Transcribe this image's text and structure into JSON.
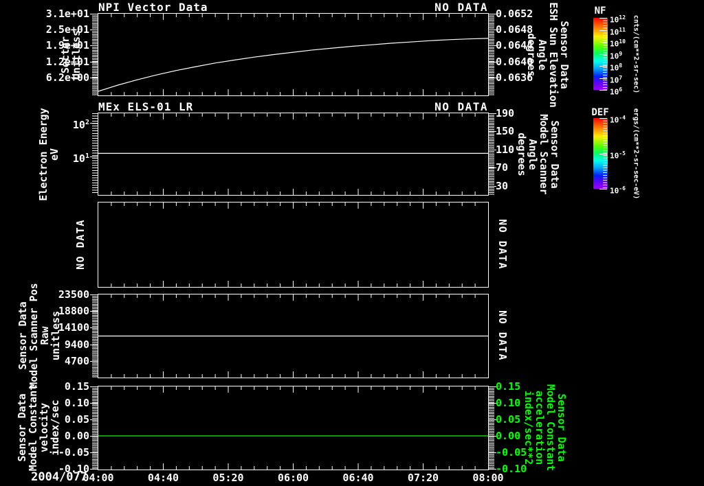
{
  "chart_data": {
    "x_axis": {
      "date_label": "2004/077",
      "tick_labels": [
        "04:00",
        "04:40",
        "05:20",
        "06:00",
        "06:40",
        "07:20",
        "08:00"
      ],
      "range_hours": [
        4,
        8
      ],
      "minor_per_major": 5
    },
    "panels": [
      {
        "id": "npi-vector-data",
        "type": "line",
        "title": "NPI Vector Data",
        "status": "NO DATA",
        "left_axis": {
          "title": "Sector\nUnitless",
          "scale": "linear",
          "range": [
            -0.8,
            31
          ],
          "comb": "dense",
          "ticks": [
            {
              "v": 6.2,
              "label": "6.2e+00"
            },
            {
              "v": 12.4,
              "label": "1.2e+01"
            },
            {
              "v": 18.6,
              "label": "1.9e+01"
            },
            {
              "v": 24.8,
              "label": "2.5e+01"
            },
            {
              "v": 31,
              "label": "3.1e+01"
            }
          ]
        },
        "right_axis": {
          "title": "Sensor Data\nESH Sun Elevation\nAngle\ndegrees",
          "scale": "linear",
          "range": [
            0.06315,
            0.0652
          ],
          "comb": "dense",
          "ticks": [
            {
              "v": 0.0636,
              "label": "0.0636"
            },
            {
              "v": 0.064,
              "label": "0.0640"
            },
            {
              "v": 0.0644,
              "label": "0.0644"
            },
            {
              "v": 0.0648,
              "label": "0.0648"
            },
            {
              "v": 0.0652,
              "label": "0.0652"
            }
          ]
        },
        "series": [
          {
            "name": "npi-sector-curve",
            "color": "#ffffff",
            "axis": "left",
            "points": [
              [
                4.0,
                0.8
              ],
              [
                4.2,
                3.2
              ],
              [
                4.4,
                5.3
              ],
              [
                4.6,
                7.2
              ],
              [
                4.8,
                8.9
              ],
              [
                5.0,
                10.4
              ],
              [
                5.2,
                11.8
              ],
              [
                5.4,
                13.0
              ],
              [
                5.6,
                14.1
              ],
              [
                5.8,
                15.1
              ],
              [
                6.0,
                16.0
              ],
              [
                6.2,
                16.9
              ],
              [
                6.4,
                17.6
              ],
              [
                6.6,
                18.3
              ],
              [
                6.8,
                18.9
              ],
              [
                7.0,
                19.5
              ],
              [
                7.2,
                20.0
              ],
              [
                7.4,
                20.5
              ],
              [
                7.6,
                20.9
              ],
              [
                7.8,
                21.2
              ],
              [
                8.0,
                21.4
              ]
            ]
          }
        ]
      },
      {
        "id": "mex-els-01-lr",
        "type": "line",
        "title": "MEx ELS-01 LR",
        "status": "NO DATA",
        "left_axis": {
          "title": "Electron Energy\neV",
          "scale": "log",
          "range": [
            0.76,
            188
          ],
          "comb": "log",
          "ticks": [
            {
              "v": 10,
              "label": "10^1"
            },
            {
              "v": 100,
              "label": "10^2"
            }
          ]
        },
        "right_axis": {
          "title": "Sensor Data\nModel Scanner\nAngle\ndegrees",
          "scale": "linear",
          "range": [
            10,
            190
          ],
          "comb": "dense",
          "ticks": [
            {
              "v": 30,
              "label": "30"
            },
            {
              "v": 70,
              "label": "70"
            },
            {
              "v": 110,
              "label": "110"
            },
            {
              "v": 150,
              "label": "150"
            },
            {
              "v": 190,
              "label": "190"
            }
          ]
        },
        "series": [
          {
            "name": "electron-energy-line",
            "color": "#ffffff",
            "axis": "left",
            "points": [
              [
                4,
                12.6
              ],
              [
                8,
                12.6
              ]
            ]
          }
        ]
      },
      {
        "id": "no-data-panel",
        "type": "empty",
        "title": "",
        "status": "",
        "left_axis": {
          "title": "NO DATA"
        },
        "right_axis": {
          "title": "NO DATA"
        },
        "series": []
      },
      {
        "id": "model-scanner-pos",
        "type": "line",
        "title": "",
        "status": "",
        "left_axis": {
          "title": "Sensor Data\nModel Scanner Pos\nRaw\nunitless",
          "scale": "linear",
          "range": [
            0,
            23500
          ],
          "comb": "dense",
          "ticks": [
            {
              "v": 4700,
              "label": "4700"
            },
            {
              "v": 9400,
              "label": "9400"
            },
            {
              "v": 14100,
              "label": "14100"
            },
            {
              "v": 18800,
              "label": "18800"
            },
            {
              "v": 23500,
              "label": "23500"
            }
          ]
        },
        "right_axis": {
          "title": "NO DATA"
        },
        "series": [
          {
            "name": "scanner-pos-line",
            "color": "#ffffff",
            "axis": "left",
            "points": [
              [
                4,
                11750
              ],
              [
                8,
                11750
              ]
            ]
          }
        ]
      },
      {
        "id": "model-constant",
        "type": "line",
        "title": "",
        "status": "",
        "left_axis": {
          "title": "Sensor Data\nModel Constant\nvelocity\nindex/sec",
          "scale": "linear",
          "range": [
            -0.102,
            0.15
          ],
          "comb": "dense",
          "ticks": [
            {
              "v": -0.1,
              "label": "-0.10"
            },
            {
              "v": -0.05,
              "label": "-0.05"
            },
            {
              "v": 0,
              "label": "0.00"
            },
            {
              "v": 0.05,
              "label": "0.05"
            },
            {
              "v": 0.1,
              "label": "0.10"
            },
            {
              "v": 0.15,
              "label": "0.15"
            }
          ]
        },
        "right_axis": {
          "title": "Sensor Data\nModel Constant\nacceleration\nindex/sec**2",
          "color": "#00ff00",
          "scale": "linear",
          "range": [
            -0.102,
            0.15
          ],
          "comb": "dense",
          "ticks": [
            {
              "v": -0.1,
              "label": "-0.10"
            },
            {
              "v": -0.05,
              "label": "-0.05"
            },
            {
              "v": 0,
              "label": "0.00"
            },
            {
              "v": 0.05,
              "label": "0.05"
            },
            {
              "v": 0.1,
              "label": "0.10"
            },
            {
              "v": 0.15,
              "label": "0.15"
            }
          ]
        },
        "series": [
          {
            "name": "velocity-line",
            "color": "#00ff00",
            "axis": "left",
            "points": [
              [
                4,
                0.0
              ],
              [
                8,
                0.0
              ]
            ]
          }
        ]
      }
    ]
  },
  "colorbars": [
    {
      "title": "NF",
      "unit": "cnts/(cm**2-sr-sec)",
      "scale": "log",
      "tick_labels": [
        "10^12",
        "10^11",
        "10^10",
        "10^9",
        "10^8",
        "10^7",
        "10^6"
      ]
    },
    {
      "title": "DEF",
      "unit": "ergs/(cm**2-sr-sec-eV)",
      "scale": "log",
      "tick_labels": [
        "10^-4",
        "10^-5",
        "10^-6"
      ]
    }
  ],
  "colors": {
    "foreground": "#ffffff",
    "background": "#000000",
    "accent_green": "#00ff00"
  }
}
